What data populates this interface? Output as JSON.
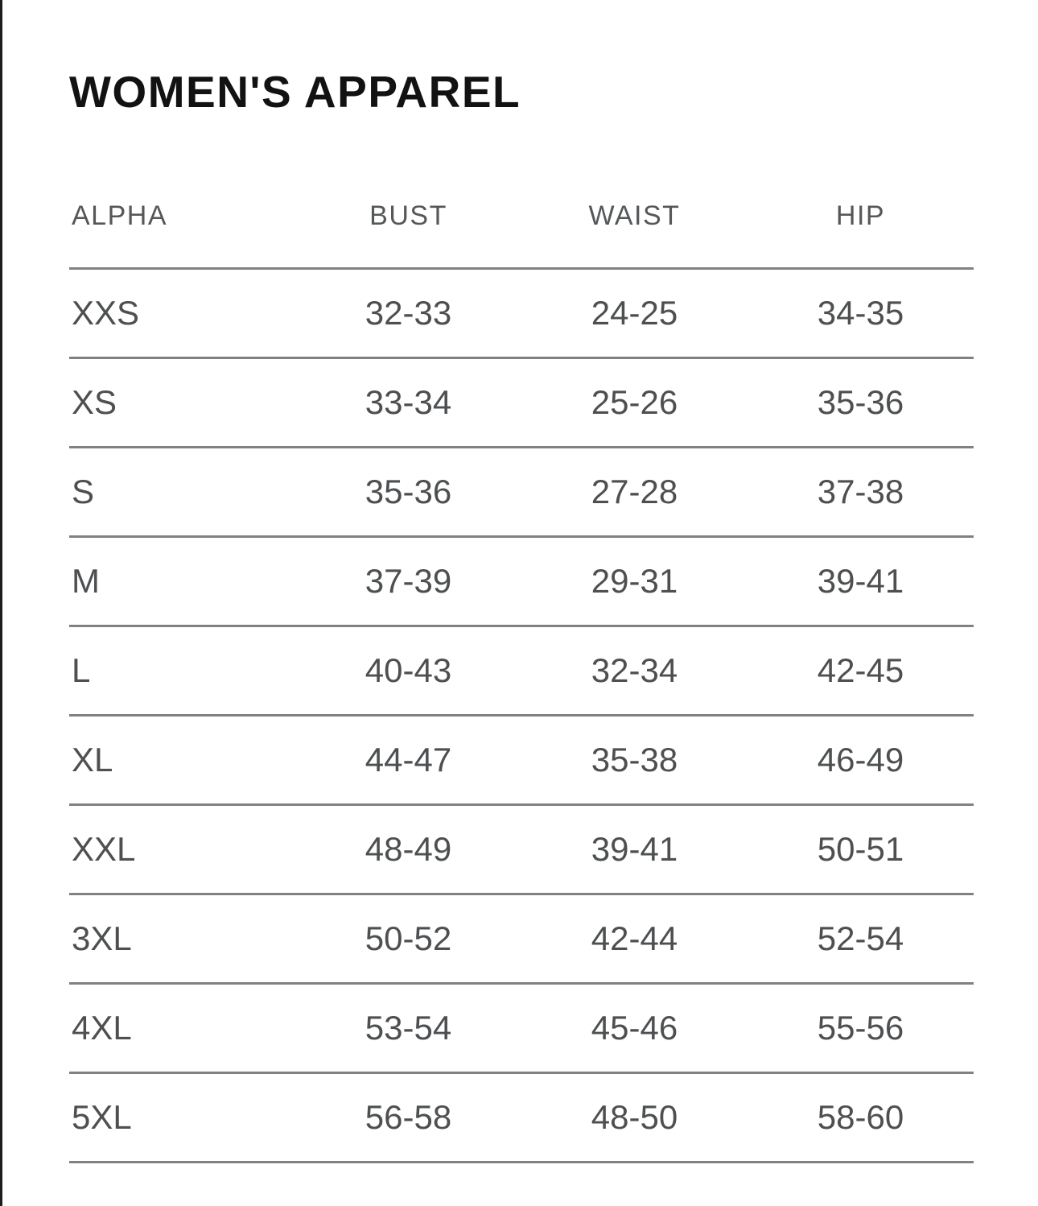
{
  "page": {
    "title": "WOMEN'S APPAREL"
  },
  "table": {
    "columns": [
      "ALPHA",
      "BUST",
      "WAIST",
      "HIP"
    ],
    "rows": [
      [
        "XXS",
        "32-33",
        "24-25",
        "34-35"
      ],
      [
        "XS",
        "33-34",
        "25-26",
        "35-36"
      ],
      [
        "S",
        "35-36",
        "27-28",
        "37-38"
      ],
      [
        "M",
        "37-39",
        "29-31",
        "39-41"
      ],
      [
        "L",
        "40-43",
        "32-34",
        "42-45"
      ],
      [
        "XL",
        "44-47",
        "35-38",
        "46-49"
      ],
      [
        "XXL",
        "48-49",
        "39-41",
        "50-51"
      ],
      [
        "3XL",
        "50-52",
        "42-44",
        "52-54"
      ],
      [
        "4XL",
        "53-54",
        "45-46",
        "55-56"
      ],
      [
        "5XL",
        "56-58",
        "48-50",
        "58-60"
      ]
    ]
  },
  "colors": {
    "title_text": "#121212",
    "header_text": "#555759",
    "cell_text": "#4d4f51",
    "rule": "#818181",
    "left_edge_line": "#1d1d1d",
    "background": "#ffffff"
  }
}
